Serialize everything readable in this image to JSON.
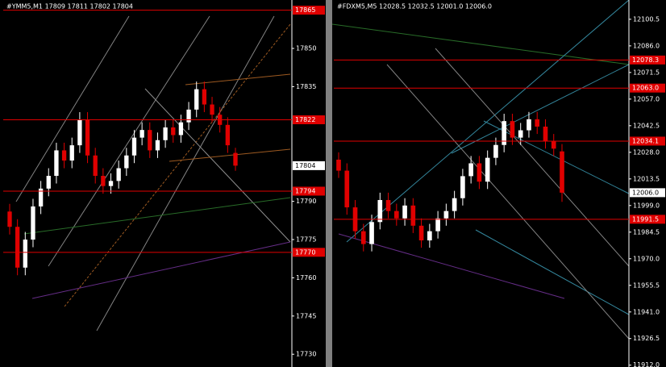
{
  "chart_data": [
    {
      "type": "candlestick",
      "title": "#YMM5,M1  17809 17811 17802 17804",
      "ylim": [
        17725,
        17869
      ],
      "yticks": [
        17850,
        17835,
        17790,
        17775,
        17760,
        17745,
        17730
      ],
      "levels": [
        17865,
        17822,
        17794,
        17770
      ],
      "level_color": "#e00000",
      "current": 17804,
      "up_color": "#ffffff",
      "down_color": "#e00000",
      "open": [
        17786,
        17780,
        17764,
        17775,
        17788,
        17795,
        17800,
        17810,
        17806,
        17812,
        17822,
        17808,
        17800,
        17796,
        17798,
        17803,
        17808,
        17815,
        17818,
        17810,
        17814,
        17819,
        17816,
        17821,
        17826,
        17834,
        17828,
        17824,
        17820,
        17809
      ],
      "high": [
        17789,
        17783,
        17778,
        17791,
        17798,
        17803,
        17813,
        17813,
        17815,
        17825,
        17825,
        17811,
        17803,
        17801,
        17806,
        17811,
        17818,
        17821,
        17821,
        17817,
        17822,
        17822,
        17824,
        17829,
        17837,
        17837,
        17831,
        17827,
        17823,
        17811
      ],
      "low": [
        17777,
        17761,
        17761,
        17772,
        17785,
        17792,
        17797,
        17803,
        17803,
        17809,
        17805,
        17797,
        17793,
        17793,
        17795,
        17800,
        17805,
        17812,
        17807,
        17807,
        17811,
        17813,
        17813,
        17818,
        17823,
        17825,
        17821,
        17817,
        17809,
        17802
      ],
      "close": [
        17780,
        17764,
        17775,
        17788,
        17795,
        17800,
        17810,
        17806,
        17812,
        17822,
        17808,
        17800,
        17796,
        17798,
        17803,
        17808,
        17815,
        17818,
        17810,
        17814,
        17819,
        17816,
        17821,
        17826,
        17834,
        17828,
        17824,
        17820,
        17812,
        17804
      ]
    },
    {
      "type": "candlestick",
      "title": "#FDXM5,M5  12028.5 12032.5 12001.0 12006.0",
      "ylim": [
        11911,
        12111
      ],
      "yticks": [
        12100.5,
        {
          "value": 12086,
          "label": "12086.0"
        },
        12071.5,
        {
          "value": 12057,
          "label": "12057.0"
        },
        12042.5,
        {
          "value": 12028,
          "label": "12028.0"
        },
        12013.5,
        {
          "value": 11999,
          "label": "11999.0"
        },
        11984.5,
        {
          "value": 11970,
          "label": "11970.0"
        },
        11955.5,
        {
          "value": 11941,
          "label": "11941.0"
        },
        11926.5,
        {
          "value": 11912,
          "label": "11912.0"
        }
      ],
      "levels": [
        12078.3,
        {
          "value": 12063,
          "label": "12063.0"
        },
        12034.1,
        11991.5
      ],
      "level_color": "#e00000",
      "current": {
        "value": 12006,
        "label": "12006.0"
      },
      "up_color": "#ffffff",
      "down_color": "#e00000",
      "open": [
        12024,
        12018,
        11998,
        11985,
        11978,
        11990,
        12002,
        11996,
        11992,
        11999,
        11988,
        11980,
        11985,
        11992,
        11996,
        12003,
        12015,
        12022,
        12012,
        12025,
        12032,
        12045,
        12036,
        12040,
        12046,
        12042,
        12034,
        12028.5
      ],
      "high": [
        12028,
        12022,
        12002,
        11989,
        11994,
        12006,
        12006,
        12000,
        12003,
        12003,
        11992,
        11989,
        11996,
        12000,
        12007,
        12019,
        12026,
        12026,
        12029,
        12036,
        12049,
        12049,
        12044,
        12050,
        12050,
        12046,
        12038,
        12032.5
      ],
      "low": [
        12014,
        11994,
        11981,
        11974,
        11974,
        11986,
        11992,
        11988,
        11988,
        11984,
        11976,
        11976,
        11981,
        11988,
        11992,
        11999,
        12011,
        12008,
        12008,
        12021,
        12028,
        12032,
        12032,
        12036,
        12038,
        12030,
        12026,
        12001.0
      ],
      "close": [
        12018,
        11998,
        11985,
        11978,
        11990,
        12002,
        11996,
        11992,
        11999,
        11988,
        11980,
        11985,
        11992,
        11996,
        12003,
        12015,
        12022,
        12012,
        12025,
        12032,
        12045,
        12036,
        12040,
        12046,
        12042,
        12034,
        12030,
        12006.0
      ]
    }
  ]
}
